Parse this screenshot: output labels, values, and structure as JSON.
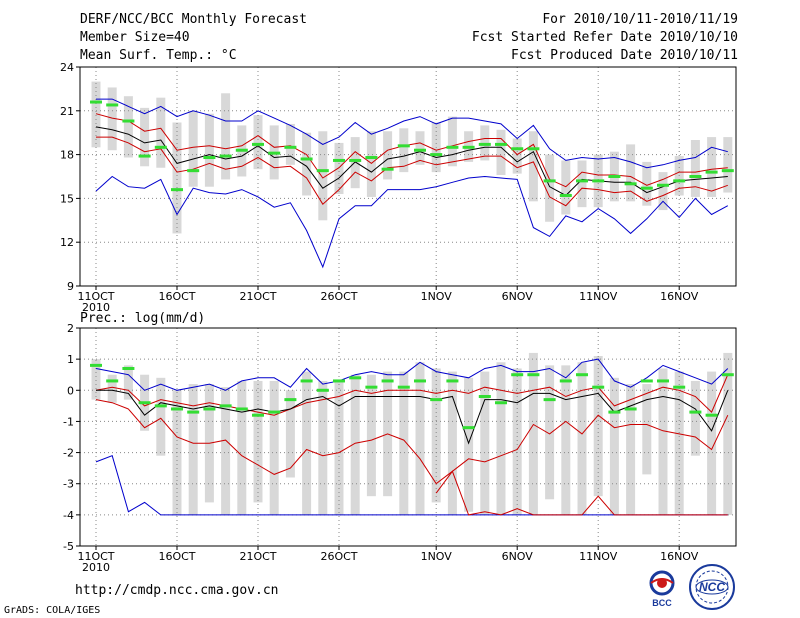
{
  "header": {
    "title": "DERF/NCC/BCC Monthly Forecast",
    "member_size": "Member Size=40",
    "variable": "Mean Surf. Temp.: °C",
    "forecast_period": "For 2010/10/11-2010/11/19",
    "started_date": "Fcst Started Refer Date 2010/10/10",
    "produced_date": "Fcst Produced Date 2010/10/11"
  },
  "footer": {
    "url": "http://cmdp.ncc.cma.gov.cn",
    "credit": "GrADS: COLA/IGES",
    "logo_bcc": "BCC",
    "logo_ncc": "NCC"
  },
  "colors": {
    "box": "#d8d8d8",
    "observed": "#33dd33",
    "mean": "#000000",
    "inner": "#cc0000",
    "outer": "#0000cc",
    "grid": "#888888"
  },
  "chart_data": [
    {
      "type": "line",
      "title": "Mean Surf. Temp.: °C",
      "ylim": [
        9,
        24
      ],
      "yticks": [
        9,
        12,
        15,
        18,
        21,
        24
      ],
      "xticks": [
        {
          "day": 1,
          "label": "11OCT"
        },
        {
          "day": 6,
          "label": "16OCT"
        },
        {
          "day": 11,
          "label": "21OCT"
        },
        {
          "day": 16,
          "label": "26OCT"
        },
        {
          "day": 22,
          "label": "1NOV"
        },
        {
          "day": 27,
          "label": "6NOV"
        },
        {
          "day": 32,
          "label": "11NOV"
        },
        {
          "day": 37,
          "label": "16NOV"
        }
      ],
      "year_label": "2010",
      "days": [
        1,
        2,
        3,
        4,
        5,
        6,
        7,
        8,
        9,
        10,
        11,
        12,
        13,
        14,
        15,
        16,
        17,
        18,
        19,
        20,
        21,
        22,
        23,
        24,
        25,
        26,
        27,
        28,
        29,
        30,
        31,
        32,
        33,
        34,
        35,
        36,
        37,
        38,
        39,
        40
      ],
      "series": [
        {
          "name": "ensemble max",
          "color": "#0000cc",
          "values": [
            21.8,
            21.8,
            21.3,
            20.8,
            21.3,
            20.6,
            21.0,
            20.7,
            20.3,
            20.3,
            21.0,
            20.5,
            20.0,
            19.4,
            18.7,
            19.2,
            20.2,
            19.4,
            19.8,
            20.3,
            20.6,
            20.1,
            20.5,
            20.5,
            20.3,
            20.1,
            19.1,
            20.0,
            18.4,
            17.6,
            17.8,
            17.7,
            17.8,
            17.5,
            17.1,
            17.3,
            17.6,
            17.8,
            18.5,
            18.2
          ]
        },
        {
          "name": "ensemble upper",
          "color": "#cc0000",
          "values": [
            20.8,
            20.5,
            20.3,
            19.6,
            19.8,
            18.3,
            18.5,
            18.6,
            18.4,
            18.6,
            19.3,
            18.5,
            18.6,
            18.0,
            16.4,
            17.1,
            18.2,
            17.4,
            18.3,
            18.6,
            18.8,
            18.3,
            18.6,
            18.9,
            19.1,
            19.1,
            18.0,
            18.7,
            16.3,
            15.8,
            16.8,
            16.6,
            16.6,
            16.5,
            15.9,
            16.3,
            16.8,
            16.8,
            17.0,
            17.1
          ]
        },
        {
          "name": "ensemble mean",
          "color": "#000000",
          "values": [
            19.9,
            19.7,
            19.4,
            18.8,
            19.0,
            17.4,
            17.7,
            18.0,
            17.7,
            17.9,
            18.6,
            17.8,
            17.9,
            17.2,
            15.7,
            16.4,
            17.5,
            16.8,
            17.7,
            17.9,
            18.2,
            17.8,
            18.0,
            18.3,
            18.5,
            18.5,
            17.5,
            18.2,
            15.8,
            15.2,
            16.3,
            16.2,
            16.1,
            16.1,
            15.4,
            15.8,
            16.2,
            16.3,
            16.4,
            16.5
          ]
        },
        {
          "name": "ensemble lower",
          "color": "#cc0000",
          "values": [
            19.2,
            19.2,
            18.8,
            18.2,
            18.4,
            16.8,
            17.0,
            17.4,
            17.0,
            17.2,
            17.8,
            17.1,
            17.2,
            16.4,
            14.6,
            15.6,
            16.8,
            16.2,
            17.1,
            17.2,
            17.6,
            17.3,
            17.5,
            17.7,
            17.9,
            17.9,
            17.1,
            17.5,
            15.1,
            14.5,
            15.7,
            15.6,
            15.4,
            15.5,
            14.8,
            15.2,
            15.7,
            15.8,
            15.5,
            15.9
          ]
        },
        {
          "name": "ensemble min",
          "color": "#0000cc",
          "values": [
            15.5,
            16.5,
            15.8,
            15.7,
            16.3,
            13.9,
            15.7,
            15.4,
            15.3,
            15.6,
            15.1,
            14.4,
            14.7,
            12.8,
            10.3,
            13.6,
            14.5,
            14.5,
            15.6,
            15.6,
            15.6,
            15.8,
            16.1,
            16.4,
            16.5,
            16.4,
            16.3,
            13.0,
            12.4,
            13.8,
            13.4,
            14.3,
            13.6,
            12.6,
            13.6,
            14.8,
            13.7,
            15.0,
            13.9,
            14.5
          ]
        }
      ],
      "box_ranges": [
        [
          18.5,
          23.0
        ],
        [
          18.3,
          22.6
        ],
        [
          17.8,
          22.0
        ],
        [
          17.2,
          21.2
        ],
        [
          17.1,
          21.9
        ],
        [
          12.6,
          20.2
        ],
        [
          15.8,
          21.0
        ],
        [
          15.8,
          20.8
        ],
        [
          16.3,
          22.2
        ],
        [
          16.5,
          20.0
        ],
        [
          17.0,
          20.7
        ],
        [
          16.3,
          20.0
        ],
        [
          17.3,
          20.1
        ],
        [
          15.2,
          19.5
        ],
        [
          13.5,
          19.6
        ],
        [
          15.3,
          18.8
        ],
        [
          15.7,
          19.2
        ],
        [
          15.1,
          19.6
        ],
        [
          16.3,
          19.6
        ],
        [
          16.8,
          19.8
        ],
        [
          17.3,
          19.6
        ],
        [
          16.8,
          20.2
        ],
        [
          17.2,
          20.6
        ],
        [
          17.5,
          19.6
        ],
        [
          17.6,
          20.0
        ],
        [
          16.6,
          19.7
        ],
        [
          16.7,
          19.1
        ],
        [
          14.8,
          19.6
        ],
        [
          13.4,
          18.0
        ],
        [
          13.9,
          17.6
        ],
        [
          14.4,
          17.6
        ],
        [
          14.4,
          18.0
        ],
        [
          14.8,
          18.2
        ],
        [
          14.8,
          18.7
        ],
        [
          14.5,
          17.5
        ],
        [
          14.2,
          16.8
        ],
        [
          15.2,
          17.9
        ],
        [
          15.1,
          19.0
        ],
        [
          15.1,
          19.2
        ],
        [
          15.4,
          19.2
        ]
      ],
      "observed": [
        21.6,
        21.4,
        20.3,
        17.9,
        18.5,
        15.6,
        16.9,
        17.8,
        17.9,
        18.3,
        18.7,
        18.1,
        18.5,
        17.7,
        16.9,
        17.6,
        17.6,
        17.8,
        17.0,
        18.6,
        18.3,
        18.0,
        18.5,
        18.5,
        18.7,
        18.7,
        18.4,
        18.4,
        16.2,
        15.2,
        16.2,
        16.2,
        16.5,
        16.0,
        15.7,
        15.9,
        16.2,
        16.5,
        16.8,
        16.9
      ]
    },
    {
      "type": "line",
      "title": "Prec.: log(mm/d)",
      "ylim": [
        -5,
        2
      ],
      "yticks": [
        -5,
        -4,
        -3,
        -2,
        -1,
        0,
        1,
        2
      ],
      "xticks": [
        {
          "day": 1,
          "label": "11OCT"
        },
        {
          "day": 6,
          "label": "16OCT"
        },
        {
          "day": 11,
          "label": "21OCT"
        },
        {
          "day": 16,
          "label": "26OCT"
        },
        {
          "day": 22,
          "label": "1NOV"
        },
        {
          "day": 27,
          "label": "6NOV"
        },
        {
          "day": 32,
          "label": "11NOV"
        },
        {
          "day": 37,
          "label": "16NOV"
        }
      ],
      "year_label": "2010",
      "days": [
        1,
        2,
        3,
        4,
        5,
        6,
        7,
        8,
        9,
        10,
        11,
        12,
        13,
        14,
        15,
        16,
        17,
        18,
        19,
        20,
        21,
        22,
        23,
        24,
        25,
        26,
        27,
        28,
        29,
        30,
        31,
        32,
        33,
        34,
        35,
        36,
        37,
        38,
        39,
        40
      ],
      "series": [
        {
          "name": "ensemble max",
          "color": "#0000cc",
          "values": [
            0.7,
            0.6,
            0.5,
            0.0,
            0.2,
            0.0,
            0.1,
            0.2,
            0.0,
            0.3,
            0.4,
            0.4,
            0.1,
            0.7,
            0.2,
            0.3,
            0.5,
            0.6,
            0.5,
            0.5,
            0.9,
            0.6,
            0.5,
            0.4,
            0.7,
            0.8,
            0.6,
            0.6,
            0.7,
            0.4,
            0.9,
            1.0,
            0.3,
            0.1,
            0.4,
            0.8,
            0.6,
            0.4,
            0.2,
            0.7
          ]
        },
        {
          "name": "ensemble upper",
          "color": "#cc0000",
          "values": [
            0.0,
            0.1,
            0.0,
            -0.5,
            -0.3,
            -0.4,
            -0.5,
            -0.4,
            -0.5,
            -0.6,
            -0.7,
            -0.8,
            -0.6,
            -0.4,
            -0.3,
            -0.2,
            0.0,
            -0.1,
            0.0,
            0.0,
            0.0,
            -0.1,
            0.0,
            -0.1,
            0.1,
            0.0,
            -0.1,
            0.0,
            0.1,
            -0.2,
            0.0,
            0.1,
            -0.5,
            -0.3,
            -0.1,
            0.1,
            0.0,
            -0.2,
            -0.7,
            0.5
          ]
        },
        {
          "name": "ensemble mean",
          "color": "#000000",
          "values": [
            0.0,
            0.0,
            -0.1,
            -0.8,
            -0.4,
            -0.5,
            -0.6,
            -0.5,
            -0.6,
            -0.7,
            -0.6,
            -0.7,
            -0.6,
            -0.3,
            -0.2,
            -0.5,
            -0.2,
            -0.2,
            -0.2,
            -0.2,
            -0.2,
            -0.3,
            -0.2,
            -1.7,
            -0.3,
            -0.3,
            -0.4,
            -0.1,
            -0.1,
            -0.3,
            -0.2,
            -0.1,
            -0.7,
            -0.5,
            -0.3,
            -0.2,
            -0.3,
            -0.6,
            -1.3,
            0.0
          ]
        },
        {
          "name": "ensemble lower",
          "color": "#cc0000",
          "values": [
            -0.3,
            -0.4,
            -0.6,
            -1.2,
            -0.9,
            -1.5,
            -1.7,
            -1.7,
            -1.6,
            -2.1,
            -2.4,
            -2.7,
            -2.5,
            -1.9,
            -2.1,
            -2.0,
            -1.7,
            -1.6,
            -1.4,
            -1.6,
            -2.2,
            -3.0,
            -2.6,
            -2.2,
            -2.3,
            -2.1,
            -1.9,
            -1.1,
            -1.4,
            -1.0,
            -1.4,
            -0.8,
            -1.2,
            -1.1,
            -1.1,
            -1.3,
            -1.4,
            -1.5,
            -1.9,
            -0.8
          ]
        },
        {
          "name": "ensemble min",
          "color": "#0000cc",
          "values": [
            -2.3,
            -2.1,
            -3.9,
            -3.6,
            -4.0,
            -4.0,
            -4.0,
            -4.0,
            -4.0,
            -4.0,
            -4.0,
            -4.0,
            -4.0,
            -4.0,
            -4.0,
            -4.0,
            -4.0,
            -4.0,
            -4.0,
            -4.0,
            -4.0,
            -4.0,
            -4.0,
            -4.0,
            -4.0,
            -4.0,
            -4.0,
            -4.0,
            -4.0,
            -4.0,
            -4.0,
            -4.0,
            -4.0,
            -4.0,
            -4.0,
            -4.0,
            -4.0,
            -4.0,
            -4.0,
            -4.0
          ]
        },
        {
          "name": "lowest member",
          "color": "#cc0000",
          "values": [
            null,
            null,
            null,
            null,
            null,
            null,
            null,
            null,
            null,
            null,
            null,
            null,
            null,
            null,
            null,
            null,
            null,
            null,
            null,
            null,
            null,
            -3.3,
            -2.6,
            -4.0,
            -3.9,
            -4.0,
            -3.8,
            -4.0,
            -4.0,
            -4.0,
            -4.0,
            -3.4,
            -4.0,
            -4.0,
            -4.0,
            -4.0,
            -4.0,
            -4.0,
            -4.0,
            -4.0
          ]
        }
      ],
      "box_ranges": [
        [
          -0.3,
          1.0
        ],
        [
          -0.4,
          0.5
        ],
        [
          -0.3,
          0.8
        ],
        [
          -1.3,
          0.5
        ],
        [
          -2.1,
          0.4
        ],
        [
          -4.0,
          0.0
        ],
        [
          -4.0,
          0.2
        ],
        [
          -3.6,
          0.2
        ],
        [
          -4.0,
          0.1
        ],
        [
          -4.0,
          0.3
        ],
        [
          -3.6,
          0.3
        ],
        [
          -4.0,
          0.3
        ],
        [
          -2.8,
          0.0
        ],
        [
          -4.0,
          0.6
        ],
        [
          -4.0,
          0.3
        ],
        [
          -4.0,
          0.3
        ],
        [
          -4.0,
          0.5
        ],
        [
          -3.4,
          0.5
        ],
        [
          -3.4,
          0.6
        ],
        [
          -4.0,
          0.6
        ],
        [
          -4.0,
          0.9
        ],
        [
          -3.6,
          0.7
        ],
        [
          -4.0,
          0.6
        ],
        [
          -3.9,
          0.4
        ],
        [
          -4.0,
          0.6
        ],
        [
          -4.0,
          0.9
        ],
        [
          -4.0,
          0.7
        ],
        [
          -4.0,
          1.2
        ],
        [
          -3.5,
          0.8
        ],
        [
          -4.0,
          0.8
        ],
        [
          -4.0,
          0.9
        ],
        [
          -3.4,
          1.1
        ],
        [
          -4.0,
          0.4
        ],
        [
          -4.0,
          0.2
        ],
        [
          -2.7,
          0.2
        ],
        [
          -4.0,
          0.7
        ],
        [
          -4.0,
          0.6
        ],
        [
          -2.1,
          0.3
        ],
        [
          -4.0,
          0.6
        ],
        [
          -4.0,
          1.2
        ]
      ],
      "observed": [
        0.8,
        0.3,
        0.7,
        -0.4,
        -0.5,
        -0.6,
        -0.7,
        -0.6,
        -0.5,
        -0.6,
        -0.8,
        -0.7,
        -0.3,
        0.3,
        0.0,
        0.3,
        0.4,
        0.1,
        0.3,
        0.1,
        0.3,
        -0.3,
        0.3,
        -1.2,
        -0.2,
        -0.4,
        0.5,
        0.5,
        -0.3,
        0.3,
        0.5,
        0.1,
        -0.7,
        -0.6,
        0.3,
        0.3,
        0.1,
        -0.7,
        -0.8,
        0.5
      ]
    }
  ]
}
